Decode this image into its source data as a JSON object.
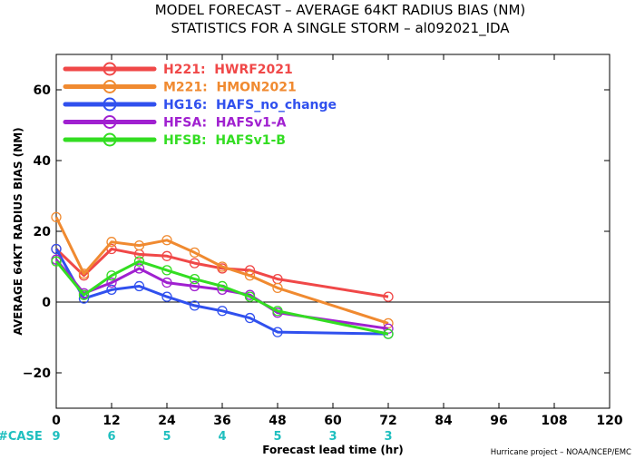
{
  "chart_data": {
    "type": "line",
    "title": "MODEL FORECAST – AVERAGE 64KT RADIUS BIAS (NM)",
    "subtitle": "STATISTICS FOR A SINGLE STORM – al092021_IDA",
    "xlabel": "Forecast lead time (hr)",
    "ylabel": "AVERAGE 64KT RADIUS BIAS (NM)",
    "xlim": [
      0,
      120
    ],
    "ylim": [
      -30,
      70
    ],
    "x_ticks": [
      0,
      12,
      24,
      36,
      48,
      60,
      72,
      84,
      96,
      108,
      120
    ],
    "y_ticks": [
      -20,
      0,
      20,
      40,
      60
    ],
    "zero_line": true,
    "legend_position": "top-left",
    "case_label": "#CASE",
    "case_counts": [
      {
        "x": 0,
        "n": "9"
      },
      {
        "x": 12,
        "n": "6"
      },
      {
        "x": 24,
        "n": "5"
      },
      {
        "x": 36,
        "n": "4"
      },
      {
        "x": 48,
        "n": "5"
      },
      {
        "x": 60,
        "n": "3"
      },
      {
        "x": 72,
        "n": "3"
      }
    ],
    "series": [
      {
        "name": "H221:  HWRF2021",
        "color": "#f04848",
        "x": [
          0,
          6,
          12,
          18,
          24,
          30,
          36,
          42,
          48,
          72
        ],
        "y": [
          15,
          7.5,
          15,
          13.5,
          13,
          11,
          9.5,
          9,
          6.5,
          1.5
        ]
      },
      {
        "name": "M221:  HMON2021",
        "color": "#f08a30",
        "x": [
          0,
          6,
          12,
          18,
          24,
          30,
          36,
          42,
          48,
          72
        ],
        "y": [
          24,
          8,
          17,
          16,
          17.5,
          14,
          10,
          7.5,
          4,
          -6
        ]
      },
      {
        "name": "HG16:  HAFS_no_change",
        "color": "#3050ee",
        "x": [
          0,
          6,
          12,
          18,
          24,
          30,
          36,
          42,
          48,
          72
        ],
        "y": [
          15,
          1,
          3.5,
          4.5,
          1.5,
          -1,
          -2.5,
          -4.5,
          -8.5,
          -9
        ]
      },
      {
        "name": "HFSA:  HAFSv1-A",
        "color": "#a020d0",
        "x": [
          0,
          6,
          12,
          18,
          24,
          30,
          36,
          42,
          48,
          72
        ],
        "y": [
          12,
          2.5,
          5.5,
          9.5,
          5.5,
          4.5,
          3.5,
          2,
          -3,
          -7.5
        ]
      },
      {
        "name": "HFSB:  HAFSv1-B",
        "color": "#33dd22",
        "x": [
          0,
          6,
          12,
          18,
          24,
          30,
          36,
          42,
          48,
          72
        ],
        "y": [
          11.5,
          2,
          7.5,
          11.5,
          9,
          6.5,
          4.5,
          1.5,
          -2.5,
          -9
        ]
      }
    ]
  },
  "footer": {
    "credit": "Hurricane project – NOAA/NCEP/EMC"
  }
}
